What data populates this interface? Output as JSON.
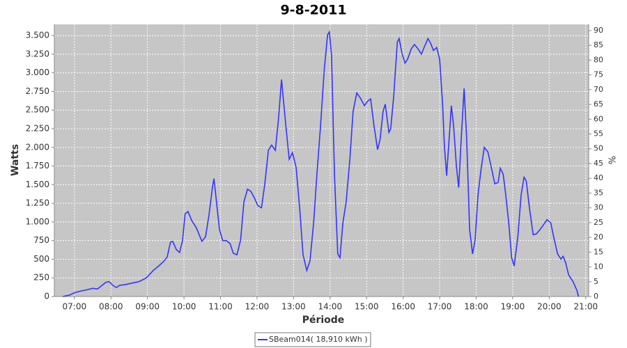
{
  "chart_data": {
    "type": "line",
    "title": "9-8-2011",
    "x_label": "Période",
    "y_label": "Watts",
    "y2_label": "%",
    "x": [
      6.68,
      6.87,
      7.0,
      7.15,
      7.34,
      7.5,
      7.63,
      7.76,
      7.86,
      7.95,
      8.05,
      8.15,
      8.24,
      8.39,
      8.58,
      8.77,
      8.97,
      9.16,
      9.31,
      9.44,
      9.54,
      9.63,
      9.69,
      9.79,
      9.88,
      9.96,
      10.03,
      10.11,
      10.21,
      10.34,
      10.49,
      10.59,
      10.68,
      10.78,
      10.82,
      10.87,
      10.97,
      11.06,
      11.16,
      11.26,
      11.35,
      11.45,
      11.55,
      11.64,
      11.74,
      11.83,
      11.93,
      12.02,
      12.12,
      12.21,
      12.31,
      12.4,
      12.5,
      12.59,
      12.67,
      12.78,
      12.88,
      12.97,
      13.07,
      13.17,
      13.26,
      13.36,
      13.45,
      13.55,
      13.64,
      13.74,
      13.84,
      13.93,
      13.98,
      14.04,
      14.12,
      14.21,
      14.27,
      14.35,
      14.44,
      14.54,
      14.63,
      14.73,
      14.82,
      14.94,
      15.03,
      15.11,
      15.2,
      15.3,
      15.37,
      15.45,
      15.51,
      15.61,
      15.66,
      15.74,
      15.84,
      15.89,
      15.97,
      16.05,
      16.12,
      16.22,
      16.31,
      16.41,
      16.5,
      16.6,
      16.68,
      16.75,
      16.83,
      16.92,
      17.0,
      17.08,
      17.13,
      17.19,
      17.27,
      17.32,
      17.38,
      17.46,
      17.52,
      17.59,
      17.67,
      17.74,
      17.82,
      17.9,
      17.97,
      18.05,
      18.13,
      18.22,
      18.32,
      18.41,
      18.51,
      18.6,
      18.66,
      18.74,
      18.81,
      18.89,
      18.97,
      19.04,
      19.14,
      19.23,
      19.31,
      19.37,
      19.46,
      19.56,
      19.65,
      19.75,
      19.84,
      19.94,
      20.04,
      20.13,
      20.23,
      20.32,
      20.38,
      20.45,
      20.53,
      20.65,
      20.76,
      20.8
    ],
    "series": [
      {
        "name": "SBeam014( 18,910 kWh )",
        "color": "#3333ff",
        "values": [
          0,
          20,
          50,
          70,
          90,
          110,
          100,
          150,
          190,
          200,
          150,
          120,
          150,
          160,
          180,
          200,
          250,
          350,
          410,
          470,
          530,
          730,
          740,
          630,
          590,
          750,
          1110,
          1140,
          1020,
          920,
          740,
          800,
          1080,
          1470,
          1580,
          1360,
          900,
          750,
          750,
          710,
          580,
          560,
          760,
          1270,
          1440,
          1410,
          1320,
          1220,
          1190,
          1500,
          1960,
          2030,
          1960,
          2400,
          2910,
          2330,
          1840,
          1930,
          1730,
          1170,
          560,
          350,
          480,
          990,
          1640,
          2300,
          3040,
          3510,
          3550,
          3230,
          1640,
          570,
          520,
          990,
          1270,
          1830,
          2480,
          2730,
          2670,
          2560,
          2620,
          2650,
          2300,
          1970,
          2110,
          2480,
          2580,
          2200,
          2250,
          2670,
          3410,
          3460,
          3260,
          3130,
          3180,
          3320,
          3380,
          3320,
          3250,
          3370,
          3460,
          3400,
          3300,
          3340,
          3180,
          2580,
          2020,
          1620,
          2200,
          2560,
          2300,
          1740,
          1460,
          2110,
          2790,
          2110,
          900,
          570,
          760,
          1360,
          1690,
          2000,
          1940,
          1740,
          1510,
          1530,
          1720,
          1640,
          1360,
          990,
          520,
          410,
          800,
          1360,
          1600,
          1550,
          1180,
          830,
          840,
          900,
          960,
          1030,
          990,
          780,
          570,
          500,
          540,
          450,
          290,
          200,
          80,
          0
        ]
      }
    ],
    "xlim": [
      6.45,
      21.08
    ],
    "xticks": [
      {
        "value": 7,
        "label": "07:00"
      },
      {
        "value": 8,
        "label": "08:00"
      },
      {
        "value": 9,
        "label": "09:00"
      },
      {
        "value": 10,
        "label": "10:00"
      },
      {
        "value": 11,
        "label": "11:00"
      },
      {
        "value": 12,
        "label": "12:00"
      },
      {
        "value": 13,
        "label": "13:00"
      },
      {
        "value": 14,
        "label": "14:00"
      },
      {
        "value": 15,
        "label": "15:00"
      },
      {
        "value": 16,
        "label": "16:00"
      },
      {
        "value": 17,
        "label": "17:00"
      },
      {
        "value": 18,
        "label": "18:00"
      },
      {
        "value": 19,
        "label": "19:00"
      },
      {
        "value": 20,
        "label": "20:00"
      },
      {
        "value": 21,
        "label": "21:00"
      }
    ],
    "ylim": [
      0,
      3650
    ],
    "yticks": [
      0,
      250,
      500,
      750,
      {
        "value": 1000,
        "label": "1.000"
      },
      {
        "value": 1250,
        "label": "1.250"
      },
      {
        "value": 1500,
        "label": "1.500"
      },
      {
        "value": 1750,
        "label": "1.750"
      },
      {
        "value": 2000,
        "label": "2.000"
      },
      {
        "value": 2250,
        "label": "2.250"
      },
      {
        "value": 2500,
        "label": "2.500"
      },
      {
        "value": 2750,
        "label": "2.750"
      },
      {
        "value": 3000,
        "label": "3.000"
      },
      {
        "value": 3250,
        "label": "3.250"
      },
      {
        "value": 3500,
        "label": "3.500"
      }
    ],
    "y2lim": [
      0,
      92.1
    ],
    "y2ticks": [
      0,
      5,
      10,
      15,
      20,
      25,
      30,
      35,
      40,
      45,
      50,
      55,
      60,
      65,
      70,
      75,
      80,
      85,
      90
    ],
    "grid": true
  }
}
